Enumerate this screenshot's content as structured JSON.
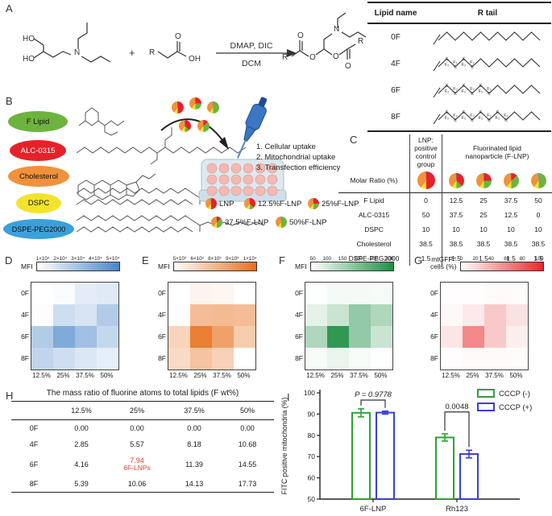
{
  "panelA": {
    "label": "A",
    "atoms": {
      "ho": "HO",
      "n": "N",
      "plus": "+",
      "r": "R",
      "o": "O",
      "oh": "OH"
    },
    "arrow_top": "DMAP, DIC",
    "arrow_bottom": "DCM",
    "lipid_table": {
      "headers": [
        "Lipid name",
        "R tail"
      ],
      "f2_glyph": "F₂",
      "c_glyph": "C",
      "rows": [
        {
          "name": "0F",
          "f2_count": 0
        },
        {
          "name": "4F",
          "f2_count": 4
        },
        {
          "name": "6F",
          "f2_count": 6
        },
        {
          "name": "8F",
          "f2_count": 8
        }
      ]
    }
  },
  "panelB": {
    "label": "B",
    "components": [
      {
        "name": "F Lipid",
        "color": "#6db33f"
      },
      {
        "name": "ALC-0315",
        "color": "#e62229"
      },
      {
        "name": "Cholesterol",
        "color": "#f0923b"
      },
      {
        "name": "DSPC",
        "color": "#f2e32e"
      },
      {
        "name": "DSPE-PEG2000",
        "color": "#3ba0da"
      }
    ],
    "steps": [
      "1. Cellular uptake",
      "2. Mitochondrial uptake",
      "3. Transfection efficiency"
    ],
    "legend": [
      {
        "pie": "LNP",
        "label": "LNP"
      },
      {
        "pie": "F12_5",
        "label": "12.5%F-LNP"
      },
      {
        "pie": "F25",
        "label": "25%F-LNP"
      },
      {
        "pie": "F37_5",
        "label": "37.5%F-LNP"
      },
      {
        "pie": "F50",
        "label": "50%F-LNP"
      }
    ]
  },
  "pie_colors": {
    "f_lipid": "#6db33f",
    "alc0315": "#e62229",
    "dspc": "#f2e32e",
    "cholesterol": "#f0923b",
    "dspe_peg2000": "#3ba0da"
  },
  "pies": {
    "LNP": [
      [
        "alc0315",
        50
      ],
      [
        "dspc",
        10
      ],
      [
        "cholesterol",
        38.5
      ],
      [
        "dspe_peg2000",
        1.5
      ]
    ],
    "F12_5": [
      [
        "alc0315",
        37.5
      ],
      [
        "f_lipid",
        12.5
      ],
      [
        "dspc",
        10
      ],
      [
        "cholesterol",
        38.5
      ],
      [
        "dspe_peg2000",
        1.5
      ]
    ],
    "F25": [
      [
        "alc0315",
        25
      ],
      [
        "f_lipid",
        25
      ],
      [
        "dspc",
        10
      ],
      [
        "cholesterol",
        38.5
      ],
      [
        "dspe_peg2000",
        1.5
      ]
    ],
    "F37_5": [
      [
        "alc0315",
        12.5
      ],
      [
        "f_lipid",
        37.5
      ],
      [
        "dspc",
        10
      ],
      [
        "cholesterol",
        38.5
      ],
      [
        "dspe_peg2000",
        1.5
      ]
    ],
    "F50": [
      [
        "f_lipid",
        50
      ],
      [
        "dspc",
        10
      ],
      [
        "cholesterol",
        38.5
      ],
      [
        "dspe_peg2000",
        1.5
      ]
    ]
  },
  "panelC": {
    "label": "C",
    "group1_l1": "LNP: positive",
    "group1_l2": "control group",
    "group2_l1": "Fluorinated lipid",
    "group2_l2": "nanoparticle (F-LNP)",
    "molar_label": "Molar Ratio (%)",
    "rows": [
      {
        "name": "F  Lipid",
        "values": [
          "0",
          "12.5",
          "25",
          "37.5",
          "50"
        ]
      },
      {
        "name": "ALC-0315",
        "values": [
          "50",
          "37.5",
          "25",
          "12.5",
          "0"
        ]
      },
      {
        "name": "DSPC",
        "values": [
          "10",
          "10",
          "10",
          "10",
          "10"
        ]
      },
      {
        "name": "Cholesterol",
        "values": [
          "38.5",
          "38.5",
          "38.5",
          "38.5",
          "38.5"
        ]
      },
      {
        "name": "DSPE-PEG2000",
        "values": [
          "1.5",
          "1.5",
          "1.5",
          "1.5",
          "1.5"
        ]
      }
    ]
  },
  "panelH": {
    "label": "H",
    "title": "The mass ratio of fluorine atoms to total lipids (F wt%)",
    "columns": [
      "12.5%",
      "25%",
      "37.5%",
      "50%"
    ],
    "rows": [
      {
        "name": "0F",
        "values": [
          "0.00",
          "0.00",
          "0.00",
          "0.00"
        ]
      },
      {
        "name": "4F",
        "values": [
          "2.85",
          "5.57",
          "8.18",
          "10.68"
        ]
      },
      {
        "name": "6F",
        "values": [
          "4.16",
          "7.94",
          "11.39",
          "14.55"
        ],
        "highlight_col": 1,
        "highlight_note": "6F-LNPs"
      },
      {
        "name": "8F",
        "values": [
          "5.39",
          "10.06",
          "14.13",
          "17.73"
        ]
      }
    ]
  },
  "chart_data": [
    {
      "panel": "D",
      "id": "D",
      "type": "heatmap",
      "label_lines": [
        "MFI"
      ],
      "rows": [
        "0F",
        "4F",
        "6F",
        "8F"
      ],
      "columns": [
        "12.5%",
        "25%",
        "37.5%",
        "50%"
      ],
      "values": [
        [
          10000,
          11000,
          16000,
          17000
        ],
        [
          10500,
          21000,
          19000,
          27000
        ],
        [
          27000,
          38000,
          31000,
          23000
        ],
        [
          24000,
          21000,
          18000,
          15500
        ]
      ],
      "domain": [
        10000,
        50000
      ],
      "colorbar_ticks": [
        "1×10⁴",
        "2×10⁴",
        "3×10⁴",
        "4×10⁴",
        "5×10⁴"
      ],
      "max_color": "#4a86c8"
    },
    {
      "panel": "E",
      "id": "E",
      "type": "heatmap",
      "label_lines": [
        "MFI"
      ],
      "rows": [
        "0F",
        "4F",
        "6F",
        "8F"
      ],
      "columns": [
        "12.5%",
        "25%",
        "37.5%",
        "50%"
      ],
      "values": [
        [
          5000,
          5400,
          5300,
          5000
        ],
        [
          5000,
          7300,
          7400,
          7300
        ],
        [
          6500,
          9500,
          8300,
          6800
        ],
        [
          6300,
          7100,
          6600,
          5000
        ]
      ],
      "domain": [
        5000,
        10000
      ],
      "colorbar_ticks": [
        "5×10³",
        "6×10³",
        "8×10³",
        "9×10³",
        "1×10⁴"
      ],
      "max_color": "#e8701c"
    },
    {
      "panel": "F",
      "id": "F",
      "type": "heatmap",
      "label_lines": [
        "MFI"
      ],
      "rows": [
        "0F",
        "4F",
        "6F",
        "8F"
      ],
      "columns": [
        "12.5%",
        "25%",
        "37.5%",
        "50%"
      ],
      "values": [
        [
          52,
          62,
          62,
          60
        ],
        [
          80,
          110,
          170,
          140
        ],
        [
          140,
          280,
          170,
          110
        ],
        [
          60,
          75,
          60,
          52
        ]
      ],
      "domain": [
        50,
        300
      ],
      "colorbar_ticks": [
        "50",
        "100",
        "150",
        "200",
        "250",
        "300"
      ],
      "max_color": "#1f8f45"
    },
    {
      "panel": "G",
      "id": "G",
      "type": "heatmap",
      "label_lines": [
        "mtGFP⁺",
        "cells (%)"
      ],
      "rows": [
        "0F",
        "4F",
        "6F",
        "8F"
      ],
      "columns": [
        "12.5%",
        "25%",
        "37.5%",
        "50%"
      ],
      "values": [
        [
          1,
          1,
          2,
          2
        ],
        [
          3,
          10,
          25,
          14
        ],
        [
          12,
          55,
          25,
          8
        ],
        [
          1,
          2,
          2,
          2
        ]
      ],
      "domain": [
        0,
        100
      ],
      "colorbar_ticks": [
        "0",
        "20",
        "40",
        "60",
        "80",
        "100"
      ],
      "max_color": "#e8272b"
    },
    {
      "panel": "I",
      "id": "I",
      "type": "bar",
      "categories": [
        "6F-LNP",
        "Rh123"
      ],
      "series": [
        {
          "name": "CCCP (-)",
          "color": "#2fa136",
          "values": [
            90.6,
            79.0
          ],
          "errors": [
            1.9,
            1.7
          ]
        },
        {
          "name": "CCCP (+)",
          "color": "#3a3fd8",
          "values": [
            90.7,
            71.2
          ],
          "errors": [
            0.7,
            1.8
          ]
        }
      ],
      "ylabel": "FITC positive mitochondria (%)",
      "ylim": [
        50,
        100
      ],
      "yticks": [
        50,
        60,
        70,
        80,
        90,
        100
      ],
      "annotations": [
        {
          "text": "P = 0.9778",
          "category": "6F-LNP",
          "bracket_y_pct": 96.6
        },
        {
          "text": "0.0048",
          "category": "Rh123",
          "bracket_y_pct": 91.0
        }
      ],
      "legend_position": "top-right"
    }
  ],
  "panel_letters": {
    "D": "D",
    "E": "E",
    "F": "F",
    "G": "G",
    "I": "I"
  }
}
